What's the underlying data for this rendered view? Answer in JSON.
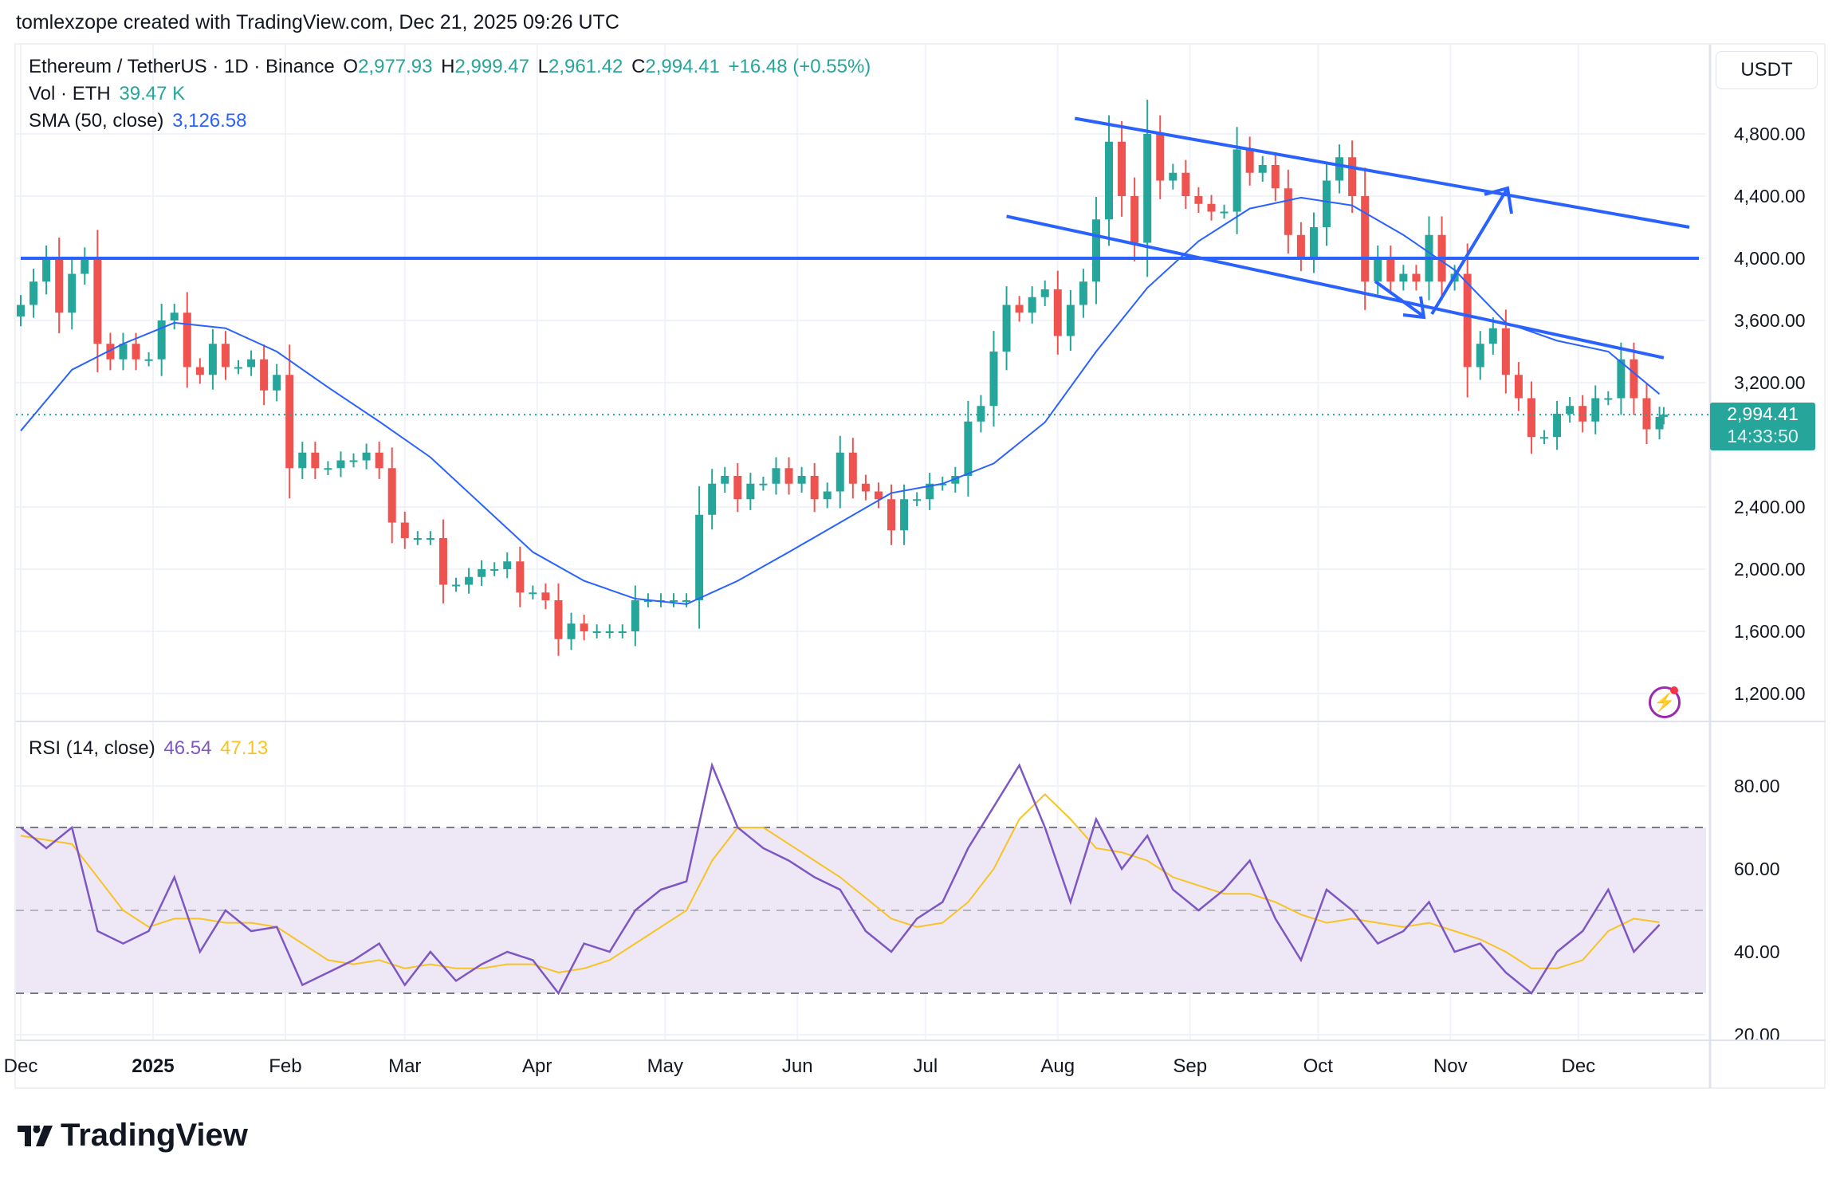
{
  "header": {
    "attribution": "tomlexzope created with TradingView.com, Dec 21, 2025 09:26 UTC"
  },
  "legend": {
    "symbol": "Ethereum / TetherUS · 1D · Binance",
    "open_label": "O",
    "open": "2,977.93",
    "high_label": "H",
    "high": "2,999.47",
    "low_label": "L",
    "low": "2,961.42",
    "close_label": "C",
    "close": "2,994.41",
    "change": "+16.48 (+0.55%)",
    "vol_label": "Vol · ETH",
    "vol_value": "39.47 K",
    "sma_label": "SMA (50, close)",
    "sma_value": "3,126.58",
    "rsi_label": "RSI (14, close)",
    "rsi_value": "46.54",
    "rsi_ma_value": "47.13"
  },
  "price_axis": {
    "currency": "USDT",
    "last_price": "2,994.41",
    "countdown": "14:33:50"
  },
  "brand": {
    "name": "TradingView"
  },
  "colors": {
    "up": "#26a69a",
    "down": "#ef5350",
    "sma": "#2962ff",
    "rsi": "#7e57c2",
    "rsi_ma": "#f7c325",
    "drawings": "#2962ff",
    "rsi_band": "#ede7f6"
  },
  "chart_data": [
    {
      "type": "candlestick",
      "first_date": "2024-12-01",
      "interval_days": 3,
      "last_date": "2025-12-21",
      "closes": [
        3700,
        3850,
        4000,
        3650,
        3900,
        4000,
        3450,
        3350,
        3450,
        3350,
        3350,
        3600,
        3650,
        3300,
        3250,
        3450,
        3300,
        3300,
        3350,
        3150,
        3250,
        2650,
        2750,
        2650,
        2650,
        2700,
        2700,
        2750,
        2650,
        2300,
        2200,
        2200,
        2200,
        1900,
        1900,
        1950,
        2000,
        2000,
        2050,
        1850,
        1850,
        1800,
        1550,
        1650,
        1600,
        1600,
        1600,
        1600,
        1800,
        1800,
        1800,
        1800,
        1800,
        2350,
        2550,
        2600,
        2450,
        2550,
        2550,
        2650,
        2550,
        2600,
        2450,
        2500,
        2750,
        2550,
        2500,
        2450,
        2250,
        2450,
        2450,
        2550,
        2550,
        2600,
        2950,
        3050,
        3400,
        3700,
        3650,
        3750,
        3800,
        3500,
        3700,
        3850,
        4250,
        4750,
        4400,
        4100,
        4800,
        4500,
        4550,
        4400,
        4350,
        4300,
        4300,
        4700,
        4550,
        4600,
        4450,
        4150,
        4000,
        4200,
        4500,
        4650,
        4400,
        3850,
        4000,
        3850,
        3900,
        3850,
        4150,
        3850,
        3900,
        3300,
        3450,
        3550,
        3250,
        3100,
        2850,
        2850,
        3000,
        3050,
        2950,
        3100,
        3100,
        3350,
        3100,
        2900,
        2980,
        2994.41
      ],
      "sma": {
        "name": "SMA (50, close)",
        "interval_days": 12,
        "values": [
          2890,
          3283,
          3450,
          3585,
          3550,
          3400,
          3170,
          2950,
          2720,
          2415,
          2110,
          1925,
          1810,
          1775,
          1925,
          2110,
          2300,
          2490,
          2550,
          2680,
          2945,
          3400,
          3810,
          4110,
          4320,
          4390,
          4340,
          4150,
          3925,
          3585,
          3470,
          3400,
          3126.58
        ]
      },
      "y_ticks": [
        "4,800.00",
        "4,400.00",
        "4,000.00",
        "3,600.00",
        "3,200.00",
        "2,400.00",
        "2,000.00",
        "1,600.00",
        "1,200.00"
      ],
      "y_tick_values": [
        4800,
        4400,
        4000,
        3600,
        3200,
        2400,
        2000,
        1600,
        1200
      ],
      "ylim": [
        1000,
        5000
      ],
      "x_ticks": [
        {
          "label": "Dec",
          "date": "2024-12-01"
        },
        {
          "label": "2025",
          "date": "2025-01-01"
        },
        {
          "label": "Feb",
          "date": "2025-02-01"
        },
        {
          "label": "Mar",
          "date": "2025-03-01"
        },
        {
          "label": "Apr",
          "date": "2025-04-01"
        },
        {
          "label": "May",
          "date": "2025-05-01"
        },
        {
          "label": "Jun",
          "date": "2025-06-01"
        },
        {
          "label": "Jul",
          "date": "2025-07-01"
        },
        {
          "label": "Aug",
          "date": "2025-08-01"
        },
        {
          "label": "Sep",
          "date": "2025-09-01"
        },
        {
          "label": "Oct",
          "date": "2025-10-01"
        },
        {
          "label": "Nov",
          "date": "2025-11-01"
        },
        {
          "label": "Dec",
          "date": "2025-12-01"
        }
      ],
      "drawings": {
        "horizontal_level": 4000,
        "upper_channel": [
          [
            "2025-08-05",
            4900
          ],
          [
            "2025-12-27",
            4200
          ]
        ],
        "lower_channel": [
          [
            "2025-07-20",
            4270
          ],
          [
            "2025-12-21",
            3360
          ]
        ]
      },
      "grid": true
    },
    {
      "type": "line",
      "name": "RSI (14, close)",
      "first_date": "2024-12-01",
      "interval_days": 6,
      "rsi": [
        70,
        65,
        70,
        45,
        42,
        45,
        58,
        40,
        50,
        45,
        46,
        32,
        35,
        38,
        42,
        32,
        40,
        33,
        37,
        40,
        38,
        30,
        42,
        40,
        50,
        55,
        57,
        85,
        70,
        65,
        62,
        58,
        55,
        45,
        40,
        48,
        52,
        65,
        75,
        85,
        70,
        52,
        72,
        60,
        68,
        55,
        50,
        55,
        62,
        48,
        38,
        55,
        50,
        42,
        45,
        52,
        40,
        42,
        35,
        30,
        40,
        45,
        55,
        40,
        46.54
      ],
      "rsi_ma": [
        68,
        67,
        66,
        58,
        50,
        46,
        48,
        48,
        47,
        47,
        46,
        42,
        38,
        37,
        38,
        36,
        37,
        36,
        36,
        37,
        37,
        35,
        36,
        38,
        42,
        46,
        50,
        62,
        70,
        70,
        66,
        62,
        58,
        53,
        48,
        46,
        47,
        52,
        60,
        72,
        78,
        72,
        65,
        64,
        62,
        58,
        56,
        54,
        54,
        52,
        49,
        47,
        48,
        47,
        46,
        47,
        45,
        43,
        40,
        36,
        36,
        38,
        45,
        48,
        47.13
      ],
      "bands": [
        70,
        50,
        30
      ],
      "y_ticks": [
        "80.00",
        "60.00",
        "40.00",
        "20.00"
      ],
      "y_tick_values": [
        80,
        60,
        40,
        20
      ],
      "ylim": [
        17,
        92
      ]
    }
  ]
}
